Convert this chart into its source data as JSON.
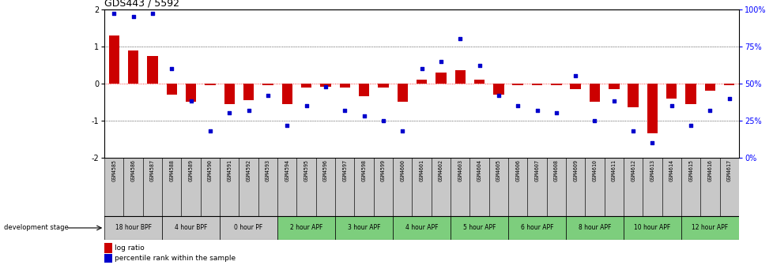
{
  "title": "GDS443 / 5592",
  "samples": [
    "GSM4585",
    "GSM4586",
    "GSM4587",
    "GSM4588",
    "GSM4589",
    "GSM4590",
    "GSM4591",
    "GSM4592",
    "GSM4593",
    "GSM4594",
    "GSM4595",
    "GSM4596",
    "GSM4597",
    "GSM4598",
    "GSM4599",
    "GSM4600",
    "GSM4601",
    "GSM4602",
    "GSM4603",
    "GSM4604",
    "GSM4605",
    "GSM4606",
    "GSM4607",
    "GSM4608",
    "GSM4609",
    "GSM4610",
    "GSM4611",
    "GSM4612",
    "GSM4613",
    "GSM4614",
    "GSM4615",
    "GSM4616",
    "GSM4617"
  ],
  "log_ratio": [
    1.3,
    0.9,
    0.75,
    -0.3,
    -0.5,
    -0.05,
    -0.55,
    -0.45,
    -0.05,
    -0.55,
    -0.1,
    -0.08,
    -0.1,
    -0.35,
    -0.1,
    -0.5,
    0.1,
    0.3,
    0.35,
    0.1,
    -0.3,
    -0.05,
    -0.05,
    -0.05,
    -0.15,
    -0.5,
    -0.15,
    -0.65,
    -1.35,
    -0.4,
    -0.55,
    -0.2,
    -0.05
  ],
  "percentile": [
    97,
    95,
    97,
    60,
    38,
    18,
    30,
    32,
    42,
    22,
    35,
    48,
    32,
    28,
    25,
    18,
    60,
    65,
    80,
    62,
    42,
    35,
    32,
    30,
    55,
    25,
    38,
    18,
    10,
    35,
    22,
    32,
    40
  ],
  "stage_groups": [
    {
      "label": "18 hour BPF",
      "start": 0,
      "end": 3,
      "color": "#c8c8c8"
    },
    {
      "label": "4 hour BPF",
      "start": 3,
      "end": 6,
      "color": "#c8c8c8"
    },
    {
      "label": "0 hour PF",
      "start": 6,
      "end": 9,
      "color": "#c8c8c8"
    },
    {
      "label": "2 hour APF",
      "start": 9,
      "end": 12,
      "color": "#7dce7d"
    },
    {
      "label": "3 hour APF",
      "start": 12,
      "end": 15,
      "color": "#7dce7d"
    },
    {
      "label": "4 hour APF",
      "start": 15,
      "end": 18,
      "color": "#7dce7d"
    },
    {
      "label": "5 hour APF",
      "start": 18,
      "end": 21,
      "color": "#7dce7d"
    },
    {
      "label": "6 hour APF",
      "start": 21,
      "end": 24,
      "color": "#7dce7d"
    },
    {
      "label": "8 hour APF",
      "start": 24,
      "end": 27,
      "color": "#7dce7d"
    },
    {
      "label": "10 hour APF",
      "start": 27,
      "end": 30,
      "color": "#7dce7d"
    },
    {
      "label": "12 hour APF",
      "start": 30,
      "end": 33,
      "color": "#7dce7d"
    }
  ],
  "ylim": [
    -2,
    2
  ],
  "bar_color": "#cc0000",
  "dot_color": "#0000cc",
  "bg_color": "#ffffff",
  "sample_cell_color": "#c8c8c8",
  "title_fontsize": 9,
  "bar_width": 0.55
}
